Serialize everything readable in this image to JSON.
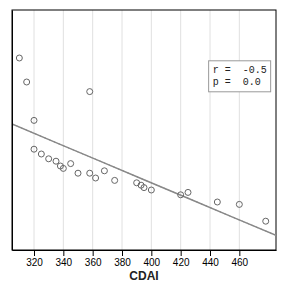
{
  "chart_data": {
    "type": "scatter",
    "xlabel": "CDAI",
    "series": [
      {
        "type": "scatter",
        "marker": "open-circle",
        "color": "#666666",
        "x": [
          310,
          315,
          320,
          358,
          320,
          325,
          330,
          335,
          338,
          340,
          345,
          350,
          358,
          362,
          368,
          375,
          390,
          393,
          395,
          400,
          420,
          425,
          445,
          460,
          478
        ],
        "values": [
          3.5,
          3.0,
          2.2,
          2.8,
          1.6,
          1.5,
          1.4,
          1.35,
          1.25,
          1.2,
          1.3,
          1.1,
          1.1,
          1.0,
          1.15,
          0.95,
          0.9,
          0.85,
          0.8,
          0.75,
          0.65,
          0.7,
          0.5,
          0.45,
          0.1
        ]
      },
      {
        "type": "line",
        "line_style": "dotted",
        "color": "#aaaaaa",
        "x": [
          305,
          335,
          365,
          395,
          425,
          455,
          485
        ],
        "values": [
          2.1259,
          1.7388,
          1.352,
          0.9655,
          0.5794,
          0.1933,
          -0.1927
        ]
      },
      {
        "type": "line",
        "line_style": "dotted",
        "color": "#aaaaaa",
        "x": [
          305,
          335,
          365,
          395,
          425,
          455,
          485
        ],
        "values": [
          2.1225,
          1.7363,
          1.35,
          0.9633,
          0.5763,
          0.1892,
          -0.1979
        ]
      },
      {
        "type": "line",
        "line_style": "solid",
        "color": "#888888",
        "x": [
          305,
          335,
          365,
          395,
          425,
          455,
          485
        ],
        "values": [
          2.1242,
          1.7376,
          1.351,
          0.9644,
          0.5779,
          0.1913,
          -0.1953
        ]
      }
    ],
    "annotation": [
      "r =  -0.5",
      "p =  0.0"
    ],
    "xlim": [
      305,
      485
    ],
    "ylim": [
      -0.5,
      4.5
    ],
    "xticks": [
      320,
      340,
      360,
      380,
      400,
      420,
      440,
      460
    ],
    "yticks": [],
    "grid": true,
    "tick_labels": "x"
  }
}
